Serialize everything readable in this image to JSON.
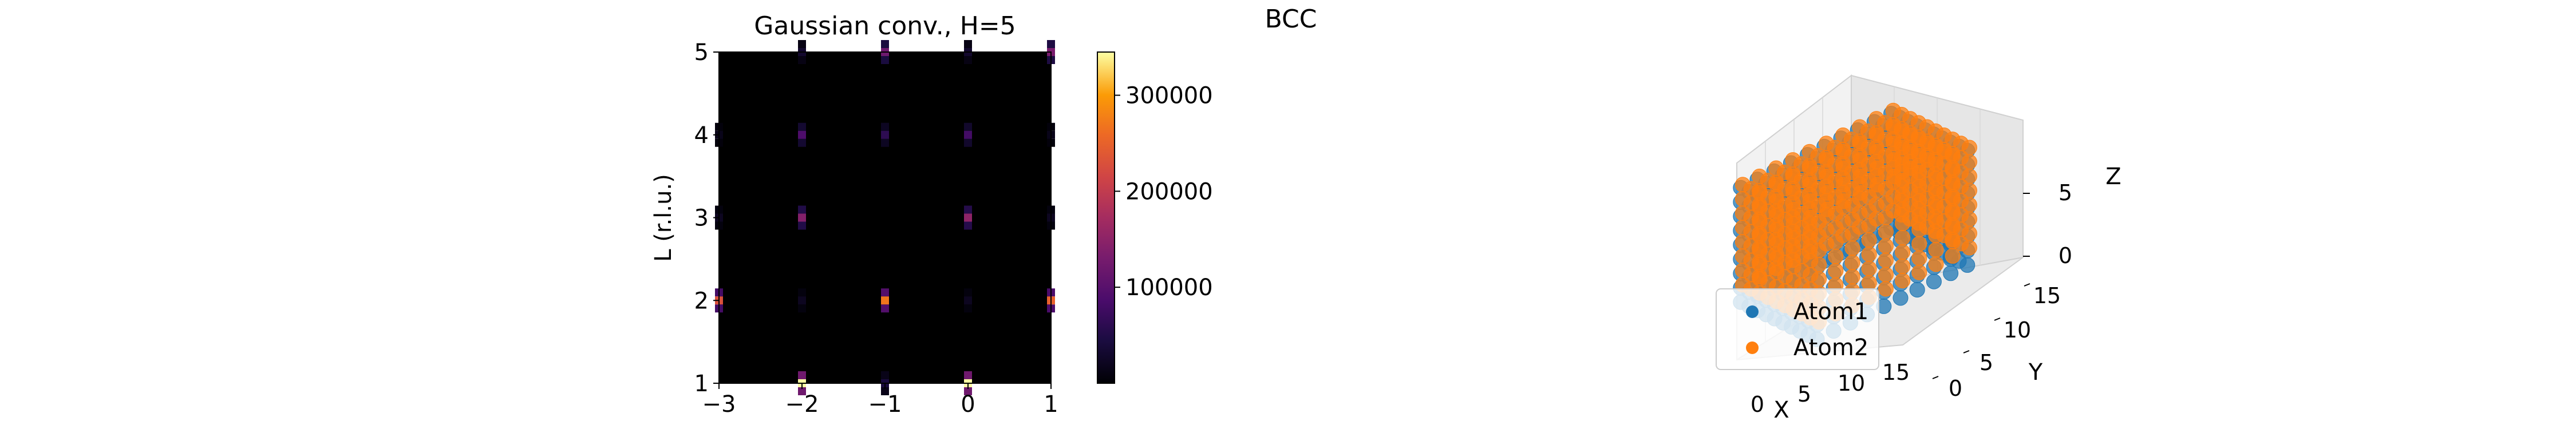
{
  "figure": {
    "suptitle": "BCC"
  },
  "colors": {
    "atom1": "#1f77b4",
    "atom2": "#ff7f0e",
    "heatmap_background": "#000000",
    "colormap": "inferno"
  },
  "chart_data": [
    {
      "type": "heatmap",
      "title": "Gaussian conv., H=5",
      "xlabel": "",
      "ylabel": "L (r.l.u.)",
      "xlim": [
        -3,
        1
      ],
      "ylim": [
        1,
        5
      ],
      "xticks": [
        "−3",
        "−2",
        "−1",
        "0",
        "1"
      ],
      "yticks": [
        "1",
        "2",
        "3",
        "4",
        "5"
      ],
      "grid": false,
      "colorbar": {
        "range": [
          0,
          345000
        ],
        "ticks": [
          "100000",
          "200000",
          "300000"
        ],
        "tick_values": [
          100000,
          200000,
          300000
        ]
      },
      "peaks": [
        {
          "x": -2,
          "y": 1,
          "value": 345000
        },
        {
          "x": -1,
          "y": 1,
          "value": 40000
        },
        {
          "x": 0,
          "y": 1,
          "value": 345000
        },
        {
          "x": -3,
          "y": 2,
          "value": 230000
        },
        {
          "x": -1,
          "y": 2,
          "value": 270000
        },
        {
          "x": 1,
          "y": 2,
          "value": 250000
        },
        {
          "x": -2,
          "y": 3,
          "value": 140000
        },
        {
          "x": 0,
          "y": 3,
          "value": 150000
        },
        {
          "x": -2,
          "y": 4,
          "value": 90000
        },
        {
          "x": -1,
          "y": 4,
          "value": 60000
        },
        {
          "x": 0,
          "y": 4,
          "value": 80000
        },
        {
          "x": -1,
          "y": 5,
          "value": 120000
        },
        {
          "x": 1,
          "y": 5,
          "value": 130000
        },
        {
          "x": -3,
          "y": 3,
          "value": 20000
        },
        {
          "x": 1,
          "y": 3,
          "value": 20000
        },
        {
          "x": -3,
          "y": 4,
          "value": 15000
        },
        {
          "x": 1,
          "y": 4,
          "value": 15000
        },
        {
          "x": -2,
          "y": 5,
          "value": 30000
        },
        {
          "x": 0,
          "y": 5,
          "value": 30000
        },
        {
          "x": -2,
          "y": 2,
          "value": 20000
        },
        {
          "x": 0,
          "y": 2,
          "value": 20000
        }
      ]
    },
    {
      "type": "scatter",
      "projection": "3d",
      "xlabel": "X",
      "ylabel": "Y",
      "zlabel": "Z",
      "xticks": [
        "0",
        "5",
        "10",
        "15"
      ],
      "yticks": [
        "0",
        "5",
        "10",
        "15"
      ],
      "zticks": [
        "0",
        "5"
      ],
      "xlim": [
        0,
        18
      ],
      "ylim": [
        0,
        18
      ],
      "zlim": [
        -1,
        9
      ],
      "legend": {
        "placement": "lower-left",
        "entries": [
          "Atom1",
          "Atom2"
        ]
      },
      "series": [
        {
          "name": "Atom1",
          "color": "#1f77b4",
          "lattice_range": [
            0,
            18
          ]
        },
        {
          "name": "Atom2",
          "color": "#ff7f0e",
          "lattice_range": [
            0.5,
            18.5
          ]
        }
      ]
    }
  ]
}
